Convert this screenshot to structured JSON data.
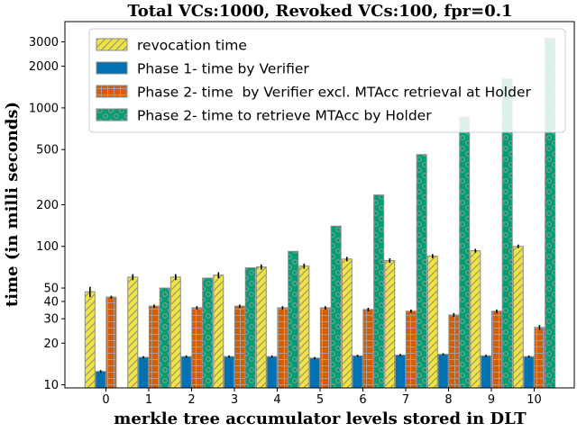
{
  "chart_data": {
    "type": "bar",
    "title": "Total VCs:1000, Revoked VCs:100, fpr=0.1",
    "xlabel": "merkle tree accumulator levels stored in DLT",
    "ylabel": "time (in milli seconds)",
    "yscale": "log",
    "ylim": [
      9.5,
      4200
    ],
    "yticks": [
      10,
      20,
      30,
      40,
      50,
      100,
      200,
      500,
      1000,
      2000,
      3000
    ],
    "ytick_labels": [
      "10",
      "20",
      "30",
      "40",
      "50",
      "100",
      "200",
      "500",
      "1000",
      "2000",
      "3000"
    ],
    "categories": [
      "0",
      "1",
      "2",
      "3",
      "4",
      "5",
      "6",
      "7",
      "8",
      "9",
      "10"
    ],
    "legend_position": "top",
    "series": [
      {
        "name": "revocation time",
        "color": "#f0e442",
        "hatch": "diagonal",
        "values": [
          47,
          60,
          60,
          62,
          71,
          72,
          81,
          79,
          85,
          93,
          100
        ],
        "errors": [
          4,
          3,
          3,
          3,
          3,
          3,
          3,
          3,
          3,
          3,
          3
        ]
      },
      {
        "name": "Phase 1- time by Verifier",
        "color": "#0072b2",
        "hatch": "none",
        "values": [
          12.5,
          15.8,
          16.0,
          16.0,
          16.0,
          15.6,
          16.2,
          16.4,
          16.6,
          16.2,
          16.0
        ],
        "errors": [
          0.3,
          0.3,
          0.3,
          0.3,
          0.3,
          0.3,
          0.3,
          0.3,
          0.3,
          0.3,
          0.3
        ]
      },
      {
        "name": "Phase 2- time  by Verifier excl. MTAcc retrieval at Holder",
        "color": "#d55e00",
        "hatch": "grid",
        "values": [
          43,
          37,
          36,
          37,
          36,
          36,
          35,
          34,
          32,
          34,
          26
        ],
        "errors": [
          1,
          1,
          1,
          1,
          1,
          1,
          1,
          1,
          1,
          1,
          1
        ]
      },
      {
        "name": "Phase 2- time to retrieve MTAcc by Holder",
        "color": "#009e73",
        "hatch": "circles",
        "values": [
          0,
          50,
          59,
          70,
          92,
          140,
          235,
          460,
          860,
          1620,
          3200
        ],
        "errors": [
          0,
          0,
          0,
          0,
          0,
          0,
          0,
          0,
          0,
          0,
          0
        ]
      }
    ]
  }
}
